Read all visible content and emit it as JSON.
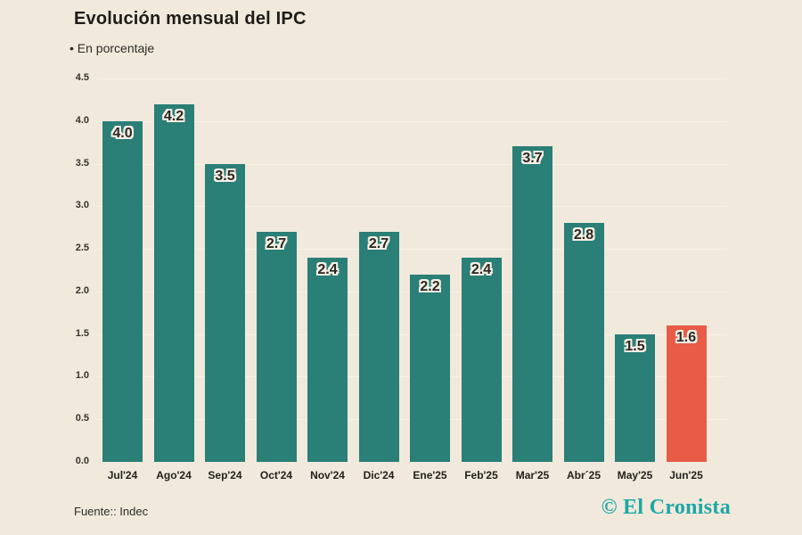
{
  "header": {
    "title": "Evolución mensual del IPC",
    "subtitle": "• En porcentaje"
  },
  "footer": {
    "source": "Fuente:: Indec",
    "logo": "© El Cronista"
  },
  "colors": {
    "background": "#f0e9dc",
    "bar": "#2a7f77",
    "highlight_bar": "#e85b47",
    "logo_teal": "#1ca7a4",
    "text": "#23211d"
  },
  "chart_data": {
    "type": "bar",
    "title": "Evolución mensual del IPC",
    "subtitle": "En porcentaje",
    "categories": [
      "Jul'24",
      "Ago'24",
      "Sep'24",
      "Oct'24",
      "Nov'24",
      "Dic'24",
      "Ene'25",
      "Feb'25",
      "Mar'25",
      "Abr´25",
      "May'25",
      "Jun'25"
    ],
    "values": [
      4.0,
      4.2,
      3.5,
      2.7,
      2.4,
      2.7,
      2.2,
      2.4,
      3.7,
      2.8,
      1.5,
      1.6
    ],
    "value_labels": [
      "4.0",
      "4.2",
      "3.5",
      "2.7",
      "2.4",
      "2.7",
      "2.2",
      "2.4",
      "3.7",
      "2.8",
      "1.5",
      "1.6"
    ],
    "highlight_index": 11,
    "xlabel": "",
    "ylabel": "",
    "ylim": [
      0,
      4.5
    ],
    "yticks": [
      4.5,
      4.0,
      3.5,
      3.0,
      2.5,
      2.0,
      1.5,
      1.0,
      0.5,
      0.0
    ],
    "ytick_labels": [
      "4.5",
      "4.0",
      "3.5",
      "3.0",
      "2.5",
      "2.0",
      "1.5",
      "1.0",
      "0.5",
      "0.0"
    ],
    "grid": "faint horizontal",
    "legend": "none"
  }
}
